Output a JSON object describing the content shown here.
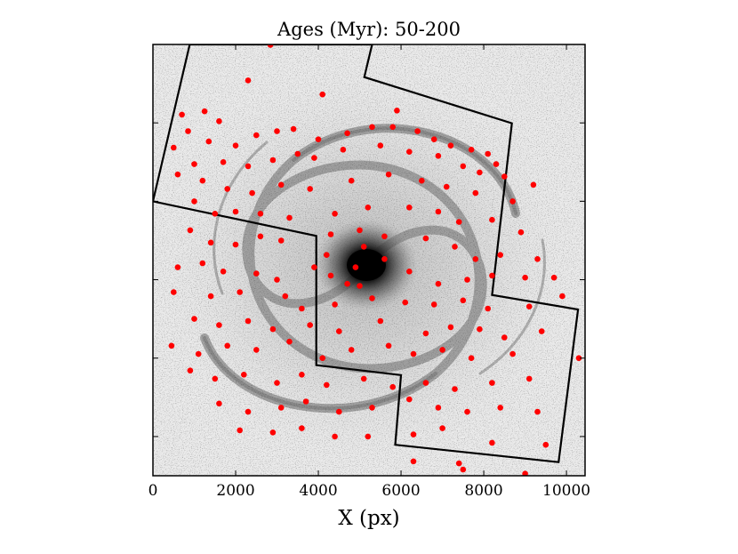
{
  "chart_data": {
    "type": "scatter",
    "title": "Ages (Myr): 50-200",
    "xlabel": "X (px)",
    "ylabel": "",
    "xlim": [
      0,
      10450
    ],
    "ylim": [
      10450,
      0
    ],
    "x_ticks": [
      0,
      2000,
      4000,
      6000,
      8000,
      10000
    ],
    "x_tick_labels": [
      "0",
      "2000",
      "4000",
      "6000",
      "8000",
      "10000"
    ],
    "y_ticks": [
      0,
      1900,
      3800,
      5700,
      7600,
      9500
    ],
    "y_tick_labels": [],
    "grid": false,
    "background": "greyscale galaxy image (spiral galaxy, dark nucleus near center)",
    "marker_color": "#ff0000",
    "footprint_color": "#000000",
    "footprint": [
      [
        890,
        0
      ],
      [
        0,
        3800
      ],
      [
        3950,
        4640
      ],
      [
        3950,
        7770
      ],
      [
        6000,
        8010
      ],
      [
        5860,
        9700
      ],
      [
        9810,
        10120
      ],
      [
        10280,
        6420
      ],
      [
        8200,
        6070
      ],
      [
        8680,
        1910
      ],
      [
        5110,
        790
      ],
      [
        5300,
        0
      ]
    ],
    "points": [
      [
        2840,
        10
      ],
      [
        2300,
        870
      ],
      [
        4100,
        1210
      ],
      [
        5900,
        1600
      ],
      [
        700,
        1700
      ],
      [
        1250,
        1620
      ],
      [
        1600,
        1860
      ],
      [
        850,
        2100
      ],
      [
        1350,
        2350
      ],
      [
        2000,
        2450
      ],
      [
        2500,
        2200
      ],
      [
        3000,
        2100
      ],
      [
        3400,
        2050
      ],
      [
        4000,
        2300
      ],
      [
        4700,
        2150
      ],
      [
        5300,
        2000
      ],
      [
        5800,
        2000
      ],
      [
        6400,
        2100
      ],
      [
        6800,
        2300
      ],
      [
        7200,
        2450
      ],
      [
        7700,
        2550
      ],
      [
        8100,
        2650
      ],
      [
        8300,
        2900
      ],
      [
        500,
        2500
      ],
      [
        1000,
        2900
      ],
      [
        1700,
        2850
      ],
      [
        2300,
        2950
      ],
      [
        2900,
        2800
      ],
      [
        3500,
        2650
      ],
      [
        3900,
        2750
      ],
      [
        4600,
        2550
      ],
      [
        5500,
        2450
      ],
      [
        6200,
        2600
      ],
      [
        6900,
        2700
      ],
      [
        7500,
        2950
      ],
      [
        7900,
        3100
      ],
      [
        8500,
        3200
      ],
      [
        9200,
        3400
      ],
      [
        600,
        3150
      ],
      [
        1200,
        3300
      ],
      [
        1800,
        3500
      ],
      [
        2400,
        3600
      ],
      [
        3100,
        3400
      ],
      [
        3800,
        3500
      ],
      [
        4800,
        3300
      ],
      [
        5700,
        3150
      ],
      [
        6500,
        3300
      ],
      [
        7100,
        3450
      ],
      [
        7800,
        3600
      ],
      [
        8700,
        3800
      ],
      [
        1000,
        3800
      ],
      [
        1500,
        4100
      ],
      [
        2000,
        4050
      ],
      [
        2600,
        4100
      ],
      [
        3300,
        4200
      ],
      [
        4400,
        4100
      ],
      [
        5200,
        3950
      ],
      [
        6200,
        3950
      ],
      [
        6900,
        4050
      ],
      [
        7400,
        4300
      ],
      [
        8200,
        4250
      ],
      [
        8900,
        4550
      ],
      [
        900,
        4500
      ],
      [
        1400,
        4800
      ],
      [
        2000,
        4850
      ],
      [
        2600,
        4650
      ],
      [
        3100,
        4750
      ],
      [
        4300,
        4600
      ],
      [
        5000,
        4500
      ],
      [
        5600,
        4650
      ],
      [
        6600,
        4700
      ],
      [
        7300,
        4900
      ],
      [
        7800,
        5200
      ],
      [
        8400,
        5100
      ],
      [
        9300,
        5200
      ],
      [
        600,
        5400
      ],
      [
        1200,
        5300
      ],
      [
        1700,
        5500
      ],
      [
        2500,
        5550
      ],
      [
        3000,
        5700
      ],
      [
        3900,
        5400
      ],
      [
        4300,
        5600
      ],
      [
        5000,
        5850
      ],
      [
        6200,
        5500
      ],
      [
        6900,
        5800
      ],
      [
        7600,
        5700
      ],
      [
        8200,
        5600
      ],
      [
        9000,
        5650
      ],
      [
        9700,
        5650
      ],
      [
        500,
        6000
      ],
      [
        1400,
        6100
      ],
      [
        2100,
        6000
      ],
      [
        3200,
        6100
      ],
      [
        3600,
        6400
      ],
      [
        4400,
        6300
      ],
      [
        5300,
        6150
      ],
      [
        6100,
        6250
      ],
      [
        6800,
        6300
      ],
      [
        7500,
        6200
      ],
      [
        8100,
        6400
      ],
      [
        9100,
        6350
      ],
      [
        9900,
        6100
      ],
      [
        1000,
        6650
      ],
      [
        1600,
        6800
      ],
      [
        2300,
        6700
      ],
      [
        2900,
        6900
      ],
      [
        3800,
        6800
      ],
      [
        4500,
        6950
      ],
      [
        5500,
        6700
      ],
      [
        6600,
        7000
      ],
      [
        7200,
        6850
      ],
      [
        7900,
        6900
      ],
      [
        8500,
        7100
      ],
      [
        9400,
        6950
      ],
      [
        450,
        7300
      ],
      [
        1100,
        7500
      ],
      [
        1800,
        7300
      ],
      [
        2500,
        7400
      ],
      [
        3300,
        7200
      ],
      [
        4100,
        7600
      ],
      [
        4800,
        7400
      ],
      [
        5700,
        7300
      ],
      [
        6300,
        7500
      ],
      [
        7000,
        7400
      ],
      [
        7700,
        7600
      ],
      [
        8700,
        7500
      ],
      [
        10300,
        7600
      ],
      [
        900,
        7900
      ],
      [
        1500,
        8100
      ],
      [
        2200,
        8000
      ],
      [
        3000,
        8200
      ],
      [
        3600,
        8000
      ],
      [
        4200,
        8250
      ],
      [
        5100,
        8100
      ],
      [
        5800,
        8300
      ],
      [
        6600,
        8200
      ],
      [
        7300,
        8350
      ],
      [
        8200,
        8200
      ],
      [
        9100,
        8100
      ],
      [
        1600,
        8700
      ],
      [
        2300,
        8900
      ],
      [
        3100,
        8800
      ],
      [
        3700,
        8650
      ],
      [
        4500,
        8900
      ],
      [
        5300,
        8800
      ],
      [
        6200,
        8600
      ],
      [
        6900,
        8800
      ],
      [
        7600,
        8900
      ],
      [
        8400,
        8800
      ],
      [
        9300,
        8900
      ],
      [
        2100,
        9350
      ],
      [
        2900,
        9400
      ],
      [
        3600,
        9300
      ],
      [
        4400,
        9500
      ],
      [
        5200,
        9500
      ],
      [
        6300,
        9450
      ],
      [
        7000,
        9300
      ],
      [
        8200,
        9650
      ],
      [
        9500,
        9700
      ],
      [
        6300,
        10100
      ],
      [
        7400,
        10150
      ],
      [
        7500,
        10300
      ],
      [
        9000,
        10400
      ],
      [
        4900,
        5400
      ],
      [
        5100,
        4900
      ],
      [
        4700,
        5800
      ],
      [
        5600,
        5200
      ],
      [
        4200,
        5100
      ]
    ]
  }
}
